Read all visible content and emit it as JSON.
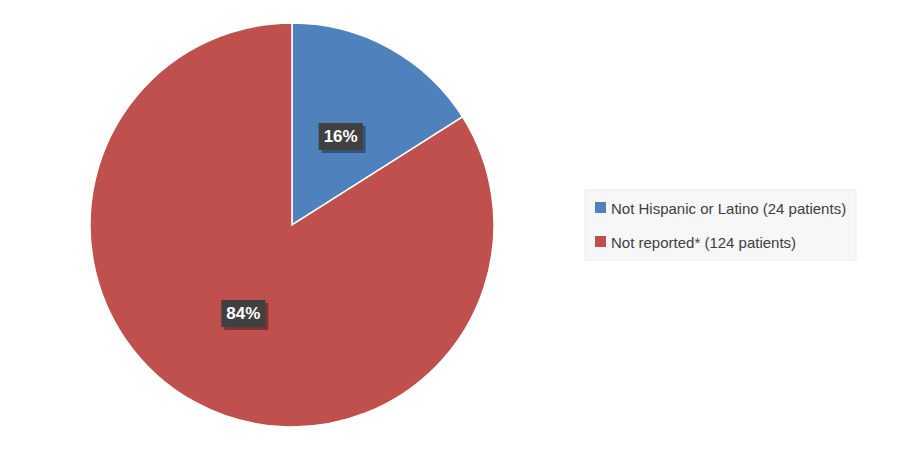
{
  "chart_data": {
    "type": "pie",
    "categories": [
      "Not Hispanic or Latino (24 patients)",
      "Not reported* (124 patients)"
    ],
    "values": [
      16,
      84
    ],
    "value_labels": [
      "16%",
      "84%"
    ],
    "colors": [
      "#4f81bd",
      "#c0504d"
    ],
    "data_labels": true,
    "legend": "right"
  }
}
